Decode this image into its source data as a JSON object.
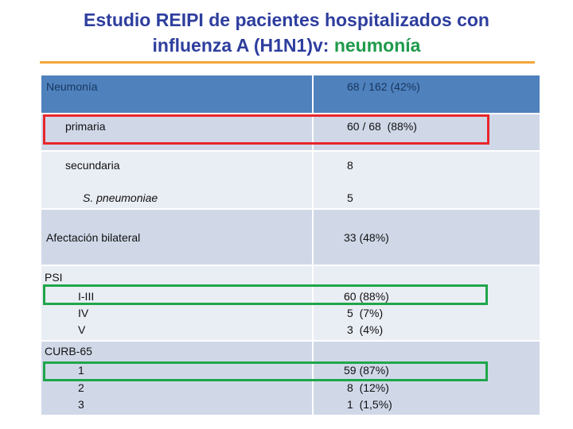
{
  "title": {
    "line1": "Estudio REIPI de pacientes hospitalizados con",
    "line2": "influenza A (H1N1)v: ",
    "highlight": "neumonía"
  },
  "table": {
    "rows": [
      {
        "left": [
          "Neumonía"
        ],
        "right": [
          "68 / 162 (42%)"
        ]
      },
      {
        "left": [
          "primaria"
        ],
        "right": [
          "60 / 68  (88%)"
        ]
      },
      {
        "left": [
          "secundaria",
          "S. pneumoniae"
        ],
        "right": [
          "8",
          "5"
        ]
      },
      {
        "left": [
          "Afectación bilateral"
        ],
        "right": [
          "33 (48%)"
        ]
      },
      {
        "left": [
          "PSI",
          "I-III",
          "IV",
          "V"
        ],
        "right": [
          "60 (88%)",
          "5  (7%)",
          "3  (4%)"
        ]
      },
      {
        "left": [
          "CURB-65",
          "1",
          "2",
          "3"
        ],
        "right": [
          "59 (87%)",
          "8  (12%)",
          "1  (1,5%)"
        ]
      }
    ]
  }
}
